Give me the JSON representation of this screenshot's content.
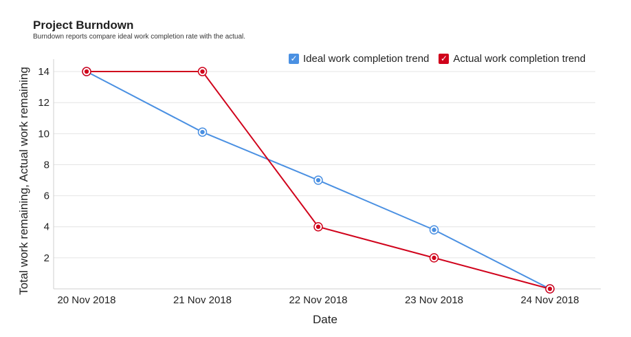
{
  "chart_data": {
    "type": "line",
    "title": "Project Burndown",
    "subtitle": "Burndown reports compare ideal work completion rate with the actual.",
    "xlabel": "Date",
    "ylabel": "Total work remaining, Actual work remaining",
    "categories": [
      "20 Nov 2018",
      "21 Nov 2018",
      "22 Nov 2018",
      "23 Nov 2018",
      "24 Nov 2018"
    ],
    "y_ticks": [
      2,
      4,
      6,
      8,
      10,
      12,
      14
    ],
    "ylim": [
      0,
      14.8
    ],
    "grid": true,
    "legend_position": "top-right",
    "series": [
      {
        "name": "Ideal work completion trend",
        "color": "#4a90e2",
        "values": [
          14,
          10.1,
          7,
          3.8,
          0
        ]
      },
      {
        "name": "Actual work completion trend",
        "color": "#d0021b",
        "values": [
          14,
          14,
          4,
          2,
          0
        ]
      }
    ]
  }
}
